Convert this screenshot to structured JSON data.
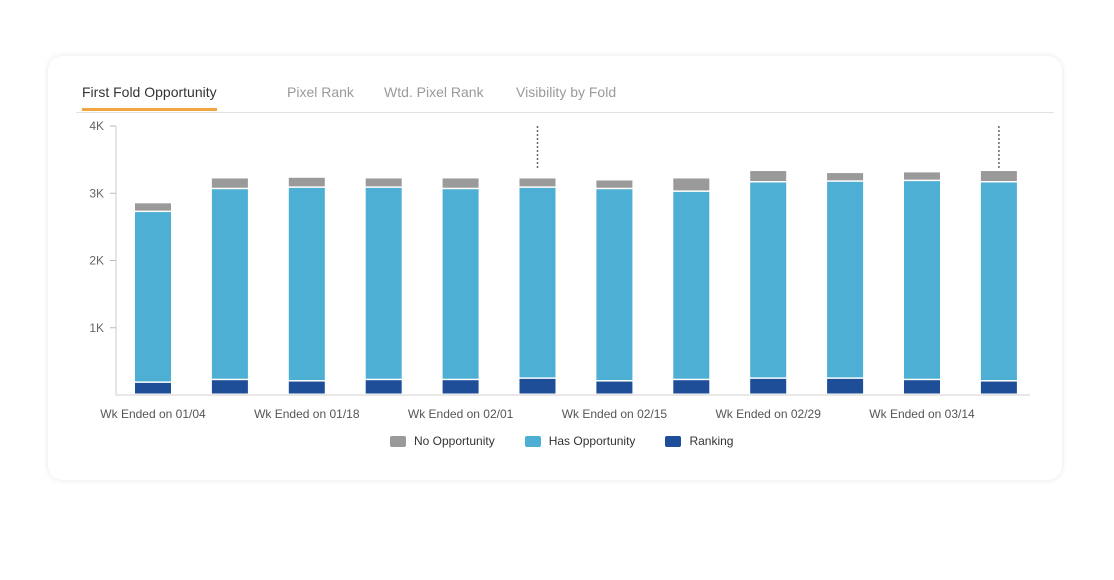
{
  "tabs": [
    {
      "label": "First Fold Opportunity",
      "active": true
    },
    {
      "label": "Pixel Rank",
      "active": false
    },
    {
      "label": "Wtd. Pixel Rank",
      "active": false
    },
    {
      "label": "Visibility by Fold",
      "active": false
    }
  ],
  "colors": {
    "no_opportunity": "#9a9a9a",
    "has_opportunity": "#4eafd4",
    "ranking": "#1f4e99",
    "active_tab_underline": "#f0a640"
  },
  "chart_data": {
    "type": "bar",
    "stacked": true,
    "categories": [
      "Wk Ended on 01/04",
      "",
      "Wk Ended on 01/18",
      "",
      "Wk Ended on 02/01",
      "",
      "Wk Ended on 02/15",
      "",
      "Wk Ended on 02/29",
      "",
      "Wk Ended on 03/14",
      ""
    ],
    "series": [
      {
        "name": "Ranking",
        "color": "#1f4e99",
        "values": [
          180,
          220,
          200,
          220,
          220,
          240,
          200,
          220,
          240,
          240,
          220,
          200
        ]
      },
      {
        "name": "Has Opportunity",
        "color": "#4eafd4",
        "values": [
          2540,
          2840,
          2880,
          2860,
          2840,
          2840,
          2860,
          2800,
          2920,
          2930,
          2960,
          2960
        ]
      },
      {
        "name": "No Opportunity",
        "color": "#9a9a9a",
        "values": [
          130,
          160,
          150,
          140,
          160,
          140,
          130,
          200,
          170,
          130,
          130,
          170
        ]
      }
    ],
    "ylim": [
      0,
      4000
    ],
    "yticks": [
      {
        "value": 1000,
        "label": "1K"
      },
      {
        "value": 2000,
        "label": "2K"
      },
      {
        "value": 3000,
        "label": "3K"
      },
      {
        "value": 4000,
        "label": "4K"
      }
    ],
    "markers_at": [
      5,
      11
    ],
    "legend": [
      "No Opportunity",
      "Has Opportunity",
      "Ranking"
    ],
    "legend_position": "bottom",
    "grid": false
  }
}
